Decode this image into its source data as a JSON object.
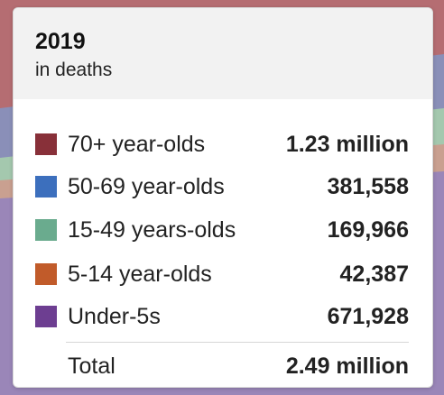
{
  "background": {
    "colors": [
      "#b56d72",
      "#8a8fb8",
      "#a4c8ae",
      "#c9a090",
      "#9a86b8"
    ]
  },
  "tooltip": {
    "title": "2019",
    "subtitle": "in deaths"
  },
  "chart_data": {
    "type": "table",
    "title": "2019",
    "subtitle": "in deaths",
    "rows": [
      {
        "label": "70+ year-olds",
        "value": "1.23 million",
        "color": "#883039"
      },
      {
        "label": "50-69 year-olds",
        "value": "381,558",
        "color": "#3c6fbd"
      },
      {
        "label": "15-49 years-olds",
        "value": "169,966",
        "color": "#6aab8e"
      },
      {
        "label": "5-14 year-olds",
        "value": "42,387",
        "color": "#c15b2a"
      },
      {
        "label": "Under-5s",
        "value": "671,928",
        "color": "#6d3e91"
      }
    ],
    "total": {
      "label": "Total",
      "value": "2.49 million"
    }
  }
}
